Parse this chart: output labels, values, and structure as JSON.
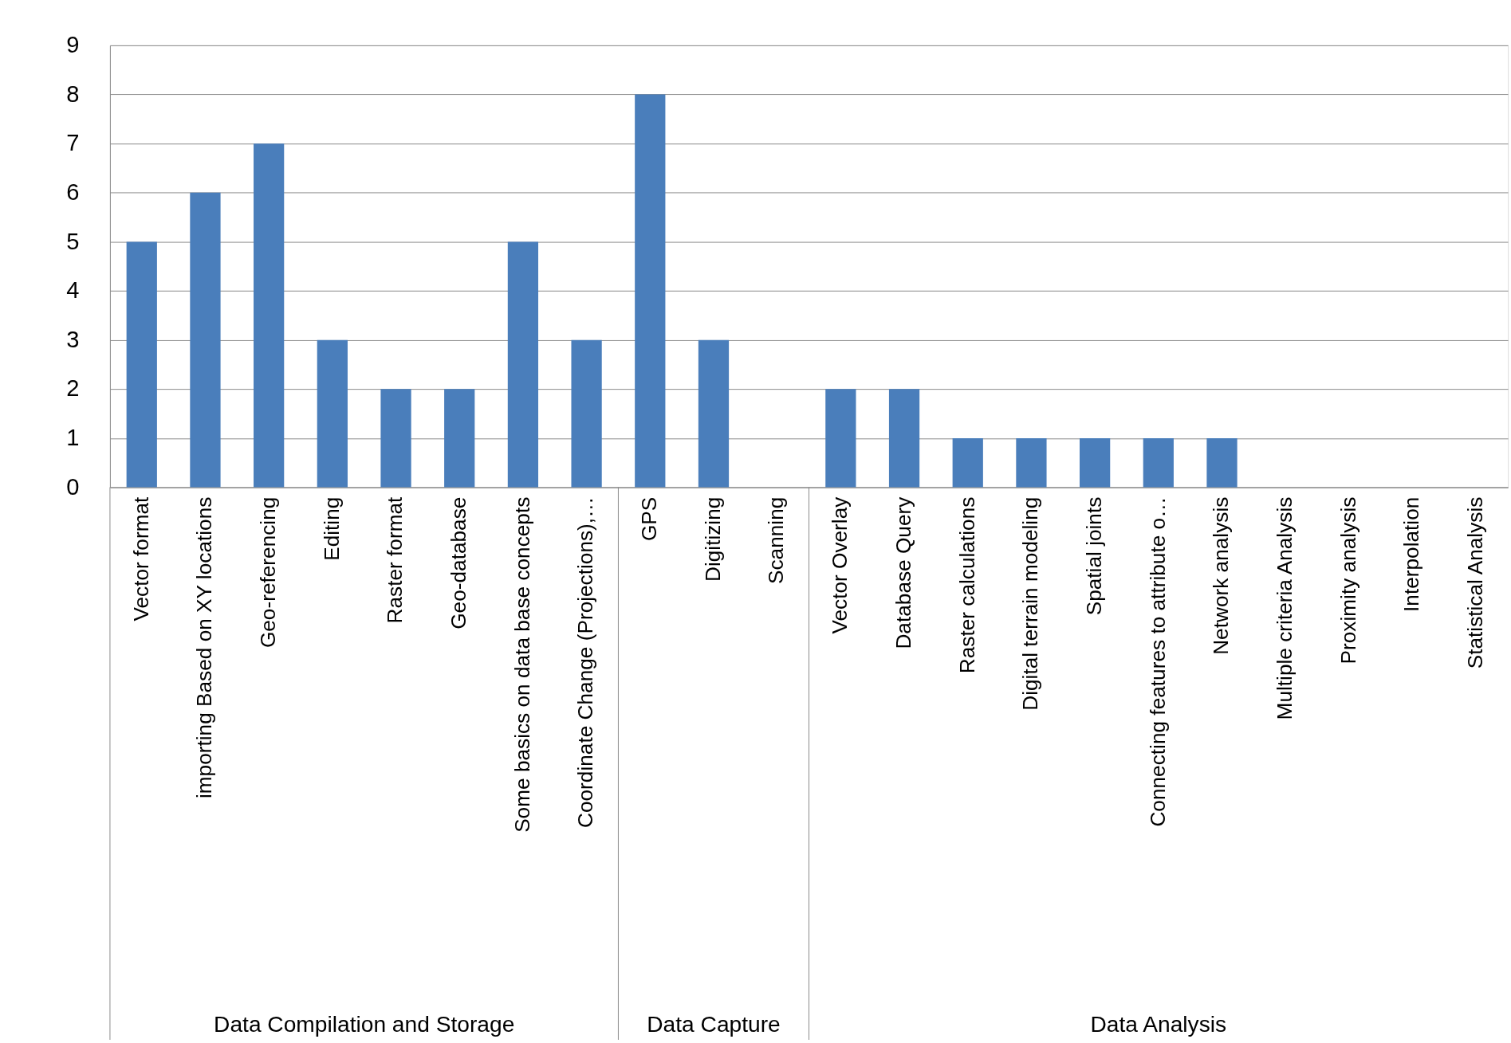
{
  "chart_data": {
    "type": "bar",
    "categories": [
      "Vector format",
      "importing Based on XY locations",
      "Geo-referencing",
      "Editing",
      "Raster format",
      "Geo-database",
      "Some basics on data base concepts",
      "Coordinate Change (Projections),…",
      "GPS",
      "Digitizing",
      "Scanning",
      "Vector Overlay",
      "Database Query",
      "Raster calculations",
      "Digital terrain modeling",
      "Spatial joints",
      "Connecting features to attribute o…",
      "Network analysis",
      "Multiple criteria Analysis",
      "Proximity analysis",
      "Interpolation",
      "Statistical Analysis"
    ],
    "values": [
      5,
      6,
      7,
      3,
      2,
      2,
      5,
      3,
      8,
      3,
      0,
      2,
      2,
      1,
      1,
      1,
      1,
      1,
      0,
      0,
      0,
      0
    ],
    "color": "#4a7ebb",
    "ylim": [
      0,
      9
    ],
    "yticks": [
      0,
      1,
      2,
      3,
      4,
      5,
      6,
      7,
      8,
      9
    ],
    "grid": "y",
    "annotations": [
      "Data Compilation and Storage",
      "Data Capture",
      "Data Analysis"
    ]
  }
}
